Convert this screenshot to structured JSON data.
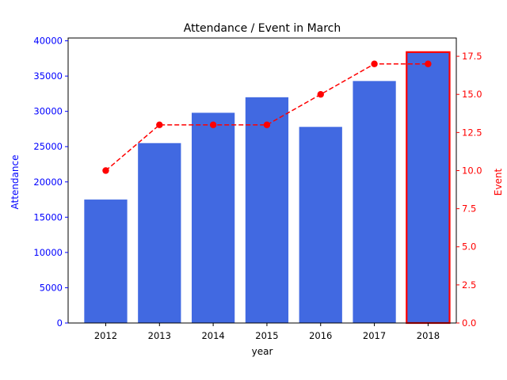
{
  "chart_data": {
    "type": "bar",
    "title": "Attendance / Event in March",
    "xlabel": "year",
    "categories": [
      "2012",
      "2013",
      "2014",
      "2015",
      "2016",
      "2017",
      "2018"
    ],
    "series": [
      {
        "name": "Attendance",
        "type": "bar",
        "axis": "left",
        "color": "#4169e1",
        "values": [
          17500,
          25500,
          29800,
          32000,
          27800,
          34300,
          38400
        ]
      },
      {
        "name": "Event",
        "type": "line",
        "axis": "right",
        "color": "#ff0000",
        "line_style": "dashed",
        "marker": "circle",
        "values": [
          10,
          13,
          13,
          13,
          15,
          17,
          17
        ]
      }
    ],
    "y_left": {
      "label": "Attendance",
      "color": "#0000ff",
      "lim": [
        0,
        40400
      ],
      "ticks": [
        0,
        5000,
        10000,
        15000,
        20000,
        25000,
        30000,
        35000,
        40000
      ]
    },
    "y_right": {
      "label": "Event",
      "color": "#ff0000",
      "lim": [
        0,
        18.7
      ],
      "ticks": [
        "0.0",
        "2.5",
        "5.0",
        "7.5",
        "10.0",
        "12.5",
        "15.0",
        "17.5"
      ]
    },
    "highlight": {
      "category": "2018",
      "edge_color": "#ff0000"
    },
    "grid": false,
    "legend": "none"
  }
}
